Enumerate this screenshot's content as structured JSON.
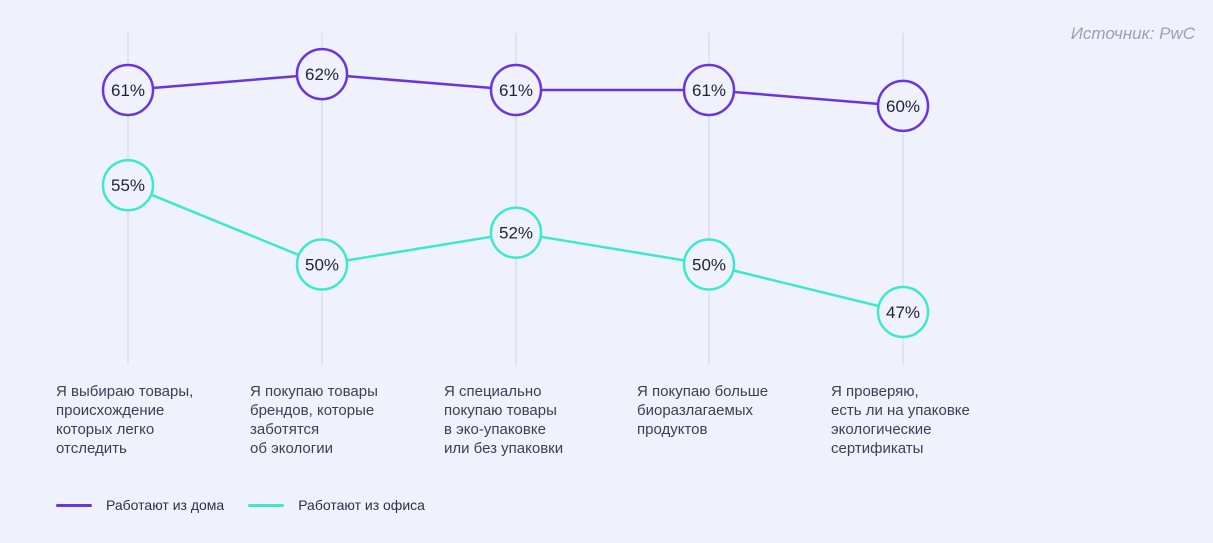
{
  "source": "Источник: PwC",
  "colors": {
    "home": "#6a34e0",
    "office": "#3de8cf",
    "grid": "#dcdfee",
    "circle_fill": "#eff2fc",
    "value_text": "#1e2238"
  },
  "chart_data": {
    "type": "line",
    "categories": [
      "Я выбираю товары,\nпроисхождение\nкоторых легко\nотследить",
      "Я покупаю товары\nбрендов, которые\nзаботятся\nоб экологии",
      "Я специально\nпокупаю товары\nв эко-упаковке\nили без упаковки",
      "Я покупаю больше\nбиоразлагаемых\nпродуктов",
      "Я проверяю,\nесть ли на упаковке\nэкологические\nсертификаты"
    ],
    "series": [
      {
        "name": "Работают из дома",
        "values": [
          61,
          62,
          61,
          61,
          60
        ],
        "labels": [
          "61%",
          "62%",
          "61%",
          "61%",
          "60%"
        ]
      },
      {
        "name": "Работают из офиса",
        "values": [
          55,
          50,
          52,
          50,
          47
        ],
        "labels": [
          "55%",
          "50%",
          "52%",
          "50%",
          "47%"
        ]
      }
    ],
    "grid": true,
    "legend": "bottom-left"
  }
}
